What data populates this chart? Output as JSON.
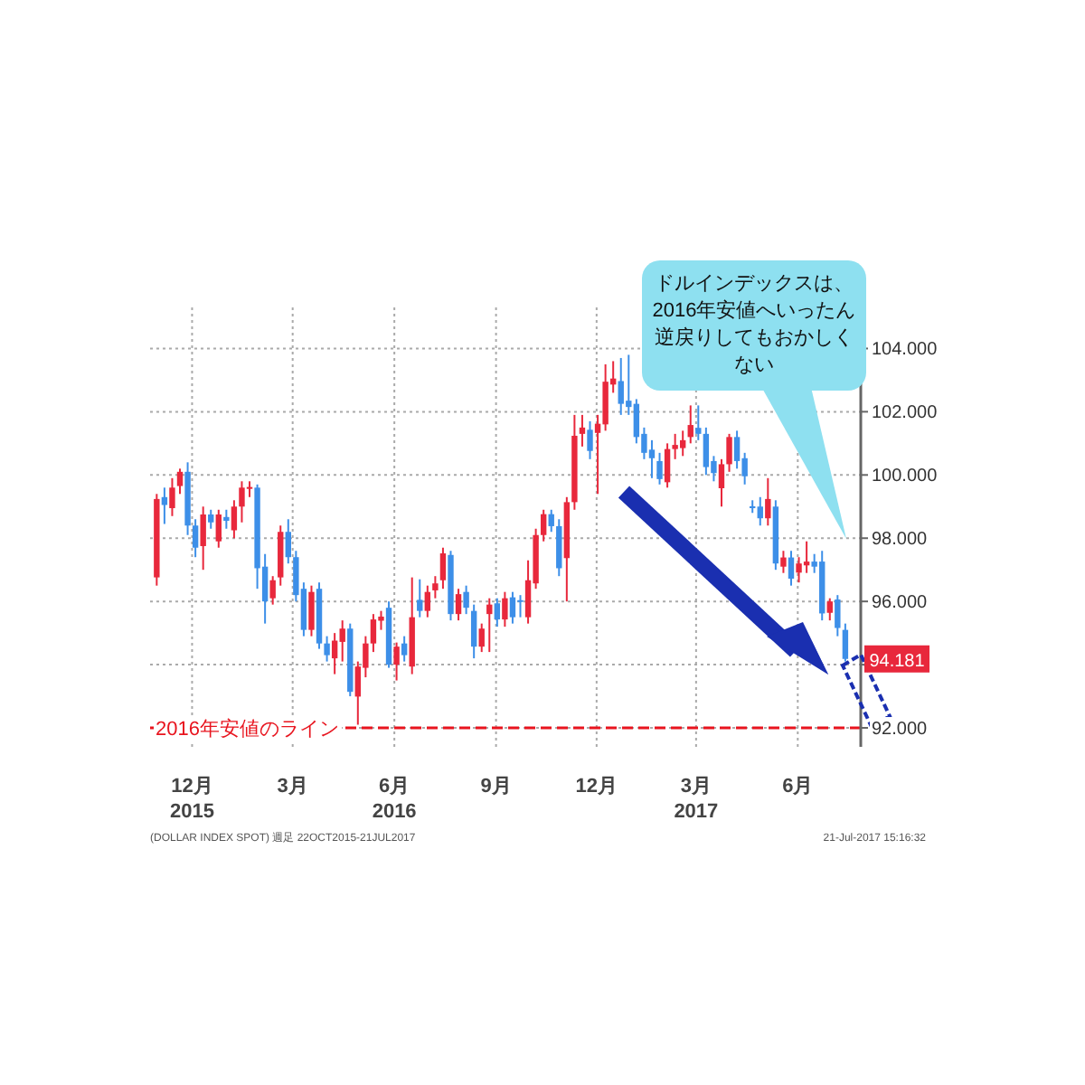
{
  "chart_data": {
    "type": "candlestick",
    "x": [
      "2015-10-30",
      "2015-11-06",
      "2015-11-13",
      "2015-11-20",
      "2015-11-27",
      "2015-12-04",
      "2015-12-11",
      "2015-12-18",
      "2015-12-25",
      "2016-01-01",
      "2016-01-08",
      "2016-01-15",
      "2016-01-22",
      "2016-01-29",
      "2016-02-05",
      "2016-02-12",
      "2016-02-19",
      "2016-02-26",
      "2016-03-04",
      "2016-03-11",
      "2016-03-18",
      "2016-03-25",
      "2016-04-01",
      "2016-04-08",
      "2016-04-15",
      "2016-04-22",
      "2016-04-29",
      "2016-05-06",
      "2016-05-13",
      "2016-05-20",
      "2016-05-27",
      "2016-06-03",
      "2016-06-10",
      "2016-06-17",
      "2016-06-24",
      "2016-07-01",
      "2016-07-08",
      "2016-07-15",
      "2016-07-22",
      "2016-07-29",
      "2016-08-05",
      "2016-08-12",
      "2016-08-19",
      "2016-08-26",
      "2016-09-02",
      "2016-09-09",
      "2016-09-16",
      "2016-09-23",
      "2016-09-30",
      "2016-10-07",
      "2016-10-14",
      "2016-10-21",
      "2016-10-28",
      "2016-11-04",
      "2016-11-11",
      "2016-11-18",
      "2016-11-25",
      "2016-12-02",
      "2016-12-09",
      "2016-12-16",
      "2016-12-23",
      "2016-12-30",
      "2017-01-06",
      "2017-01-13",
      "2017-01-20",
      "2017-01-27",
      "2017-02-03",
      "2017-02-10",
      "2017-02-17",
      "2017-02-24",
      "2017-03-03",
      "2017-03-10",
      "2017-03-17",
      "2017-03-24",
      "2017-03-31",
      "2017-04-07",
      "2017-04-14",
      "2017-04-21",
      "2017-04-28",
      "2017-05-05",
      "2017-05-12",
      "2017-05-19",
      "2017-05-26",
      "2017-06-02",
      "2017-06-09",
      "2017-06-16",
      "2017-06-23",
      "2017-06-30",
      "2017-07-07",
      "2017-07-14"
    ],
    "ohlc": [
      [
        96.76,
        99.4,
        96.5,
        99.24
      ],
      [
        99.3,
        99.6,
        98.45,
        99.05
      ],
      [
        98.95,
        99.9,
        98.7,
        99.6
      ],
      [
        99.65,
        100.2,
        99.4,
        100.1
      ],
      [
        100.1,
        100.4,
        98.1,
        98.4
      ],
      [
        98.4,
        98.6,
        97.4,
        97.7
      ],
      [
        97.75,
        99.0,
        97.0,
        98.75
      ],
      [
        98.75,
        98.9,
        98.3,
        98.5
      ],
      [
        97.9,
        98.9,
        97.7,
        98.75
      ],
      [
        98.67,
        98.9,
        98.3,
        98.55
      ],
      [
        98.25,
        99.2,
        98.0,
        99.0
      ],
      [
        99.0,
        99.8,
        98.5,
        99.6
      ],
      [
        99.56,
        99.8,
        99.3,
        99.62
      ],
      [
        99.6,
        99.7,
        96.4,
        97.05
      ],
      [
        97.1,
        97.5,
        95.3,
        96.0
      ],
      [
        96.1,
        96.8,
        95.9,
        96.67
      ],
      [
        96.76,
        98.4,
        96.5,
        98.2
      ],
      [
        98.2,
        98.6,
        97.2,
        97.4
      ],
      [
        97.4,
        97.6,
        96.0,
        96.2
      ],
      [
        96.4,
        96.6,
        94.9,
        95.1
      ],
      [
        95.1,
        96.5,
        94.9,
        96.3
      ],
      [
        96.4,
        96.6,
        94.5,
        94.67
      ],
      [
        94.67,
        94.9,
        94.1,
        94.3
      ],
      [
        94.2,
        95.0,
        93.7,
        94.76
      ],
      [
        94.72,
        95.4,
        94.1,
        95.14
      ],
      [
        95.14,
        95.3,
        93.0,
        93.14
      ],
      [
        92.99,
        94.1,
        92.1,
        93.94
      ],
      [
        93.9,
        94.9,
        93.6,
        94.67
      ],
      [
        94.67,
        95.6,
        94.4,
        95.43
      ],
      [
        95.39,
        95.7,
        95.1,
        95.52
      ],
      [
        95.8,
        96.0,
        93.9,
        94.0
      ],
      [
        94.0,
        94.7,
        93.5,
        94.57
      ],
      [
        94.67,
        94.9,
        94.1,
        94.3
      ],
      [
        93.94,
        96.76,
        93.7,
        95.5
      ],
      [
        96.05,
        96.7,
        95.5,
        95.7
      ],
      [
        95.7,
        96.5,
        95.5,
        96.3
      ],
      [
        96.35,
        96.8,
        96.1,
        96.57
      ],
      [
        96.67,
        97.7,
        96.4,
        97.52
      ],
      [
        97.47,
        97.6,
        95.4,
        95.6
      ],
      [
        95.6,
        96.4,
        95.4,
        96.23
      ],
      [
        96.3,
        96.5,
        95.6,
        95.8
      ],
      [
        95.7,
        95.9,
        94.2,
        94.57
      ],
      [
        94.57,
        95.3,
        94.4,
        95.14
      ],
      [
        95.6,
        96.1,
        94.4,
        95.9
      ],
      [
        95.94,
        96.1,
        95.2,
        95.43
      ],
      [
        95.43,
        96.3,
        95.2,
        96.1
      ],
      [
        96.13,
        96.3,
        95.3,
        95.5
      ],
      [
        96.04,
        96.2,
        95.5,
        96.0
      ],
      [
        95.5,
        97.3,
        95.3,
        96.67
      ],
      [
        96.57,
        98.3,
        96.4,
        98.1
      ],
      [
        98.1,
        98.9,
        97.9,
        98.76
      ],
      [
        98.76,
        98.9,
        98.2,
        98.38
      ],
      [
        98.38,
        98.6,
        96.8,
        97.05
      ],
      [
        97.37,
        99.3,
        96.0,
        99.14
      ],
      [
        99.14,
        101.9,
        98.9,
        101.24
      ],
      [
        101.3,
        101.9,
        100.9,
        101.5
      ],
      [
        101.43,
        101.7,
        100.5,
        100.76
      ],
      [
        101.33,
        101.9,
        99.4,
        101.62
      ],
      [
        101.6,
        103.5,
        101.4,
        102.95
      ],
      [
        102.86,
        103.6,
        102.6,
        103.05
      ],
      [
        102.97,
        103.7,
        101.9,
        102.25
      ],
      [
        102.35,
        103.8,
        101.9,
        102.15
      ],
      [
        102.25,
        102.4,
        101.0,
        101.2
      ],
      [
        101.3,
        101.5,
        100.5,
        100.7
      ],
      [
        100.8,
        101.1,
        99.9,
        100.53
      ],
      [
        100.44,
        100.7,
        99.7,
        99.87
      ],
      [
        99.77,
        101.0,
        99.6,
        100.82
      ],
      [
        100.82,
        101.3,
        100.5,
        100.95
      ],
      [
        100.85,
        101.4,
        100.6,
        101.1
      ],
      [
        101.2,
        102.2,
        101.0,
        101.58
      ],
      [
        101.49,
        102.2,
        101.1,
        101.3
      ],
      [
        101.3,
        101.5,
        100.0,
        100.25
      ],
      [
        100.44,
        100.6,
        99.8,
        100.06
      ],
      [
        99.58,
        100.5,
        99.0,
        100.34
      ],
      [
        100.34,
        101.3,
        100.1,
        101.2
      ],
      [
        101.2,
        101.4,
        100.2,
        100.44
      ],
      [
        100.53,
        100.7,
        99.7,
        99.96
      ],
      [
        99.01,
        99.2,
        98.8,
        98.95
      ],
      [
        99.0,
        99.3,
        98.4,
        98.63
      ],
      [
        98.63,
        99.9,
        98.4,
        99.24
      ],
      [
        99.0,
        99.2,
        97.0,
        97.2
      ],
      [
        97.1,
        97.6,
        96.9,
        97.39
      ],
      [
        97.39,
        97.6,
        96.5,
        96.72
      ],
      [
        96.91,
        97.4,
        96.6,
        97.2
      ],
      [
        97.14,
        97.9,
        96.9,
        97.26
      ],
      [
        97.26,
        97.5,
        96.9,
        97.1
      ],
      [
        97.26,
        97.6,
        95.4,
        95.62
      ],
      [
        95.64,
        96.1,
        95.4,
        96.0
      ],
      [
        96.06,
        96.2,
        94.9,
        95.16
      ],
      [
        95.1,
        95.3,
        94.1,
        94.181
      ]
    ],
    "colors": [
      "#e8283c",
      "#3d8fe8",
      "#e8283c",
      "#e8283c",
      "#3d8fe8",
      "#3d8fe8",
      "#e8283c",
      "#3d8fe8",
      "#e8283c",
      "#3d8fe8",
      "#e8283c",
      "#e8283c",
      "#e8283c",
      "#3d8fe8",
      "#3d8fe8",
      "#e8283c",
      "#e8283c",
      "#3d8fe8",
      "#3d8fe8",
      "#3d8fe8",
      "#e8283c",
      "#3d8fe8",
      "#3d8fe8",
      "#e8283c",
      "#e8283c",
      "#3d8fe8",
      "#e8283c",
      "#e8283c",
      "#e8283c",
      "#e8283c",
      "#3d8fe8",
      "#e8283c",
      "#3d8fe8",
      "#e8283c",
      "#3d8fe8",
      "#e8283c",
      "#e8283c",
      "#e8283c",
      "#3d8fe8",
      "#e8283c",
      "#3d8fe8",
      "#3d8fe8",
      "#e8283c",
      "#e8283c",
      "#3d8fe8",
      "#e8283c",
      "#3d8fe8",
      "#3d8fe8",
      "#e8283c",
      "#e8283c",
      "#e8283c",
      "#3d8fe8",
      "#3d8fe8",
      "#e8283c",
      "#e8283c",
      "#e8283c",
      "#3d8fe8",
      "#e8283c",
      "#e8283c",
      "#e8283c",
      "#3d8fe8",
      "#3d8fe8",
      "#3d8fe8",
      "#3d8fe8",
      "#3d8fe8",
      "#3d8fe8",
      "#e8283c",
      "#e8283c",
      "#e8283c",
      "#e8283c",
      "#3d8fe8",
      "#3d8fe8",
      "#3d8fe8",
      "#e8283c",
      "#e8283c",
      "#3d8fe8",
      "#3d8fe8",
      "#3d8fe8",
      "#3d8fe8",
      "#e8283c",
      "#3d8fe8",
      "#e8283c",
      "#3d8fe8",
      "#e8283c",
      "#e8283c",
      "#3d8fe8",
      "#3d8fe8",
      "#e8283c",
      "#3d8fe8",
      "#3d8fe8"
    ],
    "xlim": [
      "2015-10-24",
      "2017-07-28"
    ],
    "xticks": [
      {
        "value": "2015-12-01",
        "label": "12月\n2015"
      },
      {
        "value": "2016-03-01",
        "label": "3月"
      },
      {
        "value": "2016-06-01",
        "label": "6月\n2016"
      },
      {
        "value": "2016-09-01",
        "label": "9月"
      },
      {
        "value": "2016-12-01",
        "label": "12月"
      },
      {
        "value": "2017-03-01",
        "label": "3月\n2017"
      },
      {
        "value": "2017-06-01",
        "label": "6月"
      }
    ],
    "ylim": [
      91.4,
      105.3
    ],
    "yticks": [
      {
        "value": 92,
        "label": "92.000"
      },
      {
        "value": 94,
        "label": null
      },
      {
        "value": 96,
        "label": "96.000"
      },
      {
        "value": 98,
        "label": "98.000"
      },
      {
        "value": 100,
        "label": "100.000"
      },
      {
        "value": 102,
        "label": "102.000"
      },
      {
        "value": 104,
        "label": "104.000"
      }
    ],
    "grid": true,
    "ref_lines": [
      {
        "axis": "y",
        "value": 92,
        "label": "2016年安値のライン",
        "color": "#e8141e",
        "line_style": "dashed"
      }
    ],
    "annotations": [
      "ドルインデックスは、2016年安値へいったん逆戻りしてもおかしくない",
      {
        "text": "94.181",
        "y": 94.181
      },
      "(DOLLAR INDEX SPOT) 週足 22OCT2015-21JUL2017",
      "21-Jul-2017 15:16:32"
    ]
  }
}
